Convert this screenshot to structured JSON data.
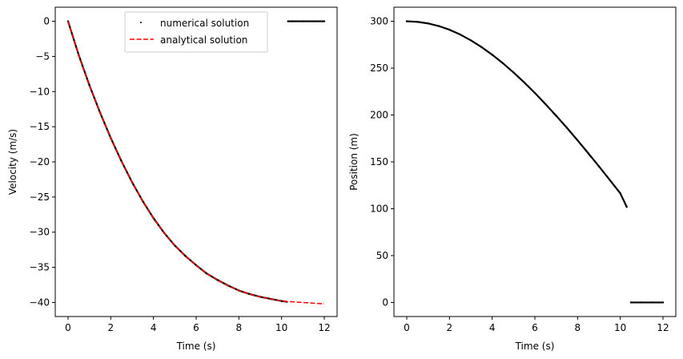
{
  "chart_data": [
    {
      "type": "line",
      "xlabel": "Time (s)",
      "ylabel": "Velocity (m/s)",
      "xlim": [
        -0.6,
        12.6
      ],
      "ylim": [
        -42.0,
        2.0
      ],
      "xticks": [
        0,
        2,
        4,
        6,
        8,
        10,
        12
      ],
      "yticks": [
        0,
        -5,
        -10,
        -15,
        -20,
        -25,
        -30,
        -35,
        -40
      ],
      "xtick_labels": [
        "0",
        "2",
        "4",
        "6",
        "8",
        "10",
        "12"
      ],
      "ytick_labels": [
        "0",
        "−5",
        "−10",
        "−15",
        "−20",
        "−25",
        "−30",
        "−35",
        "−40"
      ],
      "legend": {
        "placement": "upper center",
        "entries": [
          "numerical solution",
          "analytical solution"
        ]
      },
      "series": [
        {
          "name": "numerical solution",
          "style": "dots",
          "color": "#000000",
          "x": [
            0,
            0.5,
            1,
            1.5,
            2,
            2.5,
            3,
            3.5,
            4,
            4.5,
            5,
            5.5,
            6,
            6.5,
            7,
            7.5,
            8,
            8.5,
            9,
            9.5,
            10,
            10.25,
            10.3,
            10.5,
            11,
            11.5,
            12
          ],
          "y": [
            0,
            -4.8,
            -9.1,
            -13.0,
            -16.6,
            -19.9,
            -22.9,
            -25.6,
            -28.0,
            -30.1,
            -31.9,
            -33.4,
            -34.7,
            -35.9,
            -36.8,
            -37.6,
            -38.3,
            -38.8,
            -39.2,
            -39.5,
            -39.8,
            -39.9,
            0,
            0,
            0,
            0,
            0
          ]
        },
        {
          "name": "analytical solution",
          "style": "dashed",
          "color": "#ff0000",
          "x": [
            0,
            0.5,
            1,
            1.5,
            2,
            2.5,
            3,
            3.5,
            4,
            4.5,
            5,
            5.5,
            6,
            6.5,
            7,
            7.5,
            8,
            8.5,
            9,
            9.5,
            10,
            10.5,
            11,
            11.5,
            12
          ],
          "y": [
            0,
            -4.8,
            -9.1,
            -13.0,
            -16.6,
            -19.9,
            -22.9,
            -25.6,
            -28.0,
            -30.1,
            -31.9,
            -33.4,
            -34.7,
            -35.9,
            -36.8,
            -37.6,
            -38.3,
            -38.8,
            -39.2,
            -39.5,
            -39.8,
            -39.9,
            -40.0,
            -40.1,
            -40.2
          ]
        }
      ]
    },
    {
      "type": "line",
      "xlabel": "Time (s)",
      "ylabel": "Position (m)",
      "xlim": [
        -0.6,
        12.6
      ],
      "ylim": [
        -15,
        315
      ],
      "xticks": [
        0,
        2,
        4,
        6,
        8,
        10,
        12
      ],
      "yticks": [
        0,
        50,
        100,
        150,
        200,
        250,
        300
      ],
      "xtick_labels": [
        "0",
        "2",
        "4",
        "6",
        "8",
        "10",
        "12"
      ],
      "ytick_labels": [
        "0",
        "50",
        "100",
        "150",
        "200",
        "250",
        "300"
      ],
      "series": [
        {
          "style": "dots",
          "color": "#000000",
          "x": [
            0,
            0.5,
            1,
            1.5,
            2,
            2.5,
            3,
            3.5,
            4,
            4.5,
            5,
            5.5,
            6,
            6.5,
            7,
            7.5,
            8,
            8.5,
            9,
            9.5,
            10,
            10.3,
            10.5,
            11,
            11.5,
            12
          ],
          "y": [
            300,
            299.4,
            297.7,
            294.9,
            291.0,
            285.9,
            279.7,
            272.5,
            264.3,
            255.3,
            245.4,
            234.8,
            223.5,
            211.6,
            199.2,
            186.3,
            173.0,
            159.2,
            145.2,
            130.9,
            116.5,
            102.0,
            0,
            0,
            0,
            0
          ]
        }
      ]
    }
  ]
}
